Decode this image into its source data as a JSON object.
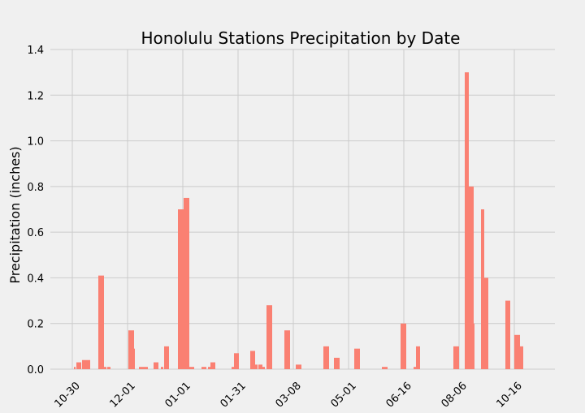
{
  "chart_data": {
    "type": "bar",
    "title": "Honolulu Stations Precipitation by Date",
    "xlabel": "",
    "ylabel": "Precipitation (inches)",
    "ylim": [
      0,
      1.4
    ],
    "yticks": [
      "0.0",
      "0.2",
      "0.4",
      "0.6",
      "0.8",
      "1.0",
      "1.2",
      "1.4"
    ],
    "grid": true,
    "xtick_labels": [
      "10-30",
      "12-01",
      "01-01",
      "01-31",
      "03-08",
      "05-01",
      "06-16",
      "08-06",
      "10-16"
    ],
    "series": [
      {
        "values": [
          0.01,
          0.03,
          0.03,
          0.04,
          0.04,
          0.04,
          0.41,
          0.1,
          0.01,
          0.01,
          0.17,
          0.09,
          0.01,
          0.01,
          0.01,
          0.03,
          0.01,
          0.1,
          0.7,
          0.75,
          0.01,
          0.01,
          0.01,
          0.03,
          0.01,
          0.07,
          0.08,
          0.02,
          0.02,
          0.01,
          0.28,
          0.17,
          0.02,
          0.1,
          0.05,
          0.09,
          0.01,
          0.2,
          0.01,
          0.1,
          0.1,
          1.3,
          0.8,
          0.2,
          0.7,
          0.4,
          0.3,
          0.15,
          0.1
        ]
      }
    ],
    "colors": {
      "bar": "#fa8072",
      "grid": "#cbcbcb",
      "background": "#f0f0f0",
      "text": "#000000"
    }
  }
}
